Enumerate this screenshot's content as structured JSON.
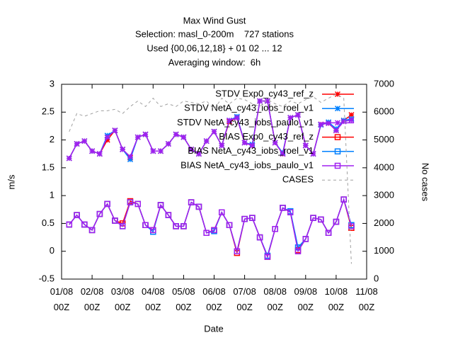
{
  "chart_data": {
    "type": "line",
    "title": "Max Wind Gust",
    "subtitles": [
      "Selection: masl_0-200m    727 stations",
      "Used {00,06,12,18} + 01 02 ... 12",
      "Averaging window:  6h"
    ],
    "xlabel": "Date",
    "ylabel": "m/s",
    "y2label": "No cases",
    "x": [
      "01/08 06Z",
      "01/08 12Z",
      "01/08 18Z",
      "02/08 00Z",
      "02/08 06Z",
      "02/08 12Z",
      "02/08 18Z",
      "03/08 00Z",
      "03/08 06Z",
      "03/08 12Z",
      "03/08 18Z",
      "04/08 00Z",
      "04/08 06Z",
      "04/08 12Z",
      "04/08 18Z",
      "05/08 00Z",
      "05/08 06Z",
      "05/08 12Z",
      "05/08 18Z",
      "06/08 00Z",
      "06/08 06Z",
      "06/08 12Z",
      "06/08 18Z",
      "07/08 00Z",
      "07/08 06Z",
      "07/08 12Z",
      "07/08 18Z",
      "08/08 00Z",
      "08/08 06Z",
      "08/08 12Z",
      "08/08 18Z",
      "09/08 00Z",
      "09/08 06Z",
      "09/08 12Z",
      "09/08 18Z",
      "10/08 00Z",
      "10/08 06Z",
      "10/08 12Z"
    ],
    "xlim": [
      "01/08 00Z",
      "11/08 00Z"
    ],
    "xticks": [
      "01/08 00Z",
      "02/08 00Z",
      "03/08 00Z",
      "04/08 00Z",
      "05/08 00Z",
      "06/08 00Z",
      "07/08 00Z",
      "08/08 00Z",
      "09/08 00Z",
      "10/08 00Z",
      "11/08 00Z"
    ],
    "ylim": [
      -0.5,
      3
    ],
    "yticks": [
      -0.5,
      0,
      0.5,
      1,
      1.5,
      2,
      2.5,
      3
    ],
    "y2lim": [
      0,
      7000
    ],
    "y2ticks": [
      0,
      1000,
      2000,
      3000,
      4000,
      5000,
      6000,
      7000
    ],
    "grid": false,
    "legend": "top-right",
    "series": [
      {
        "name": "STDV Exp0_cy43_ref_z",
        "color": "#ff0000",
        "marker": "star",
        "values": [
          1.67,
          1.93,
          1.98,
          1.8,
          1.75,
          2.0,
          2.17,
          1.83,
          1.68,
          2.05,
          2.1,
          1.8,
          1.8,
          1.93,
          2.1,
          2.05,
          1.83,
          1.75,
          1.98,
          2.15,
          1.9,
          2.33,
          2.4,
          1.95,
          1.9,
          2.7,
          2.7,
          1.95,
          1.75,
          2.4,
          2.45,
          1.9,
          1.75,
          2.28,
          2.3,
          2.17,
          2.35,
          2.45
        ]
      },
      {
        "name": "STDV NetA_cy43_iobs_roel_v1",
        "color": "#0080ff",
        "marker": "star",
        "values": [
          1.67,
          1.93,
          1.98,
          1.8,
          1.75,
          2.08,
          2.17,
          1.83,
          1.65,
          2.05,
          2.1,
          1.8,
          1.8,
          1.93,
          2.1,
          2.05,
          1.83,
          1.75,
          1.98,
          2.15,
          1.9,
          2.35,
          2.42,
          1.95,
          1.92,
          2.7,
          2.7,
          1.95,
          1.77,
          2.4,
          2.45,
          1.9,
          1.75,
          2.27,
          2.32,
          2.2,
          2.35,
          2.38
        ]
      },
      {
        "name": "STDV NetA_cy43_iobs_paulo_v1",
        "color": "#a020f0",
        "marker": "star",
        "values": [
          1.67,
          1.93,
          1.98,
          1.8,
          1.75,
          2.05,
          2.17,
          1.83,
          1.7,
          2.05,
          2.1,
          1.8,
          1.8,
          1.93,
          2.1,
          2.05,
          1.83,
          1.75,
          1.98,
          2.15,
          1.9,
          2.35,
          2.4,
          1.95,
          1.9,
          2.7,
          2.7,
          1.95,
          1.75,
          2.4,
          2.45,
          1.9,
          1.75,
          2.28,
          2.3,
          2.17,
          2.33,
          2.36
        ]
      },
      {
        "name": "BIAS Exp0_cy43_ref_z",
        "color": "#ff0000",
        "marker": "square",
        "values": [
          0.48,
          0.65,
          0.48,
          0.38,
          0.67,
          0.85,
          0.55,
          0.5,
          0.9,
          0.85,
          0.47,
          0.38,
          0.83,
          0.65,
          0.45,
          0.45,
          0.88,
          0.8,
          0.33,
          0.38,
          0.7,
          0.47,
          -0.03,
          0.58,
          0.6,
          0.25,
          -0.1,
          0.4,
          0.78,
          0.7,
          0.02,
          0.22,
          0.6,
          0.57,
          0.33,
          0.53,
          0.93,
          0.42
        ]
      },
      {
        "name": "BIAS NetA_cy43_iobs_roel_v1",
        "color": "#0080ff",
        "marker": "square",
        "values": [
          0.48,
          0.65,
          0.48,
          0.38,
          0.67,
          0.85,
          0.55,
          0.45,
          0.88,
          0.85,
          0.47,
          0.35,
          0.83,
          0.65,
          0.45,
          0.45,
          0.88,
          0.8,
          0.33,
          0.36,
          0.7,
          0.47,
          0.0,
          0.58,
          0.6,
          0.25,
          -0.08,
          0.4,
          0.78,
          0.72,
          0.07,
          0.22,
          0.6,
          0.57,
          0.33,
          0.53,
          0.93,
          0.47
        ]
      },
      {
        "name": "BIAS NetA_cy43_iobs_paulo_v1",
        "color": "#a020f0",
        "marker": "square",
        "values": [
          0.48,
          0.65,
          0.48,
          0.38,
          0.67,
          0.85,
          0.55,
          0.45,
          0.88,
          0.85,
          0.47,
          0.38,
          0.83,
          0.65,
          0.45,
          0.45,
          0.88,
          0.8,
          0.33,
          0.38,
          0.7,
          0.47,
          0.0,
          0.58,
          0.6,
          0.25,
          -0.1,
          0.4,
          0.78,
          0.7,
          0.0,
          0.22,
          0.6,
          0.57,
          0.33,
          0.53,
          0.93,
          0.45
        ]
      },
      {
        "name": "CASES",
        "color": "#a0a0a0",
        "marker": "none",
        "dash": true,
        "axis": "y2",
        "values": [
          5300,
          5950,
          5850,
          5950,
          6050,
          6050,
          6100,
          5950,
          6200,
          6400,
          6200,
          6500,
          6200,
          6300,
          6200,
          6400,
          6350,
          6300,
          6400,
          6100,
          6500,
          6300,
          6500,
          6450,
          6300,
          6200,
          6450,
          6300,
          6200,
          6400,
          6300,
          6450,
          6550,
          6350,
          6500,
          6650,
          6500,
          550
        ]
      }
    ]
  }
}
